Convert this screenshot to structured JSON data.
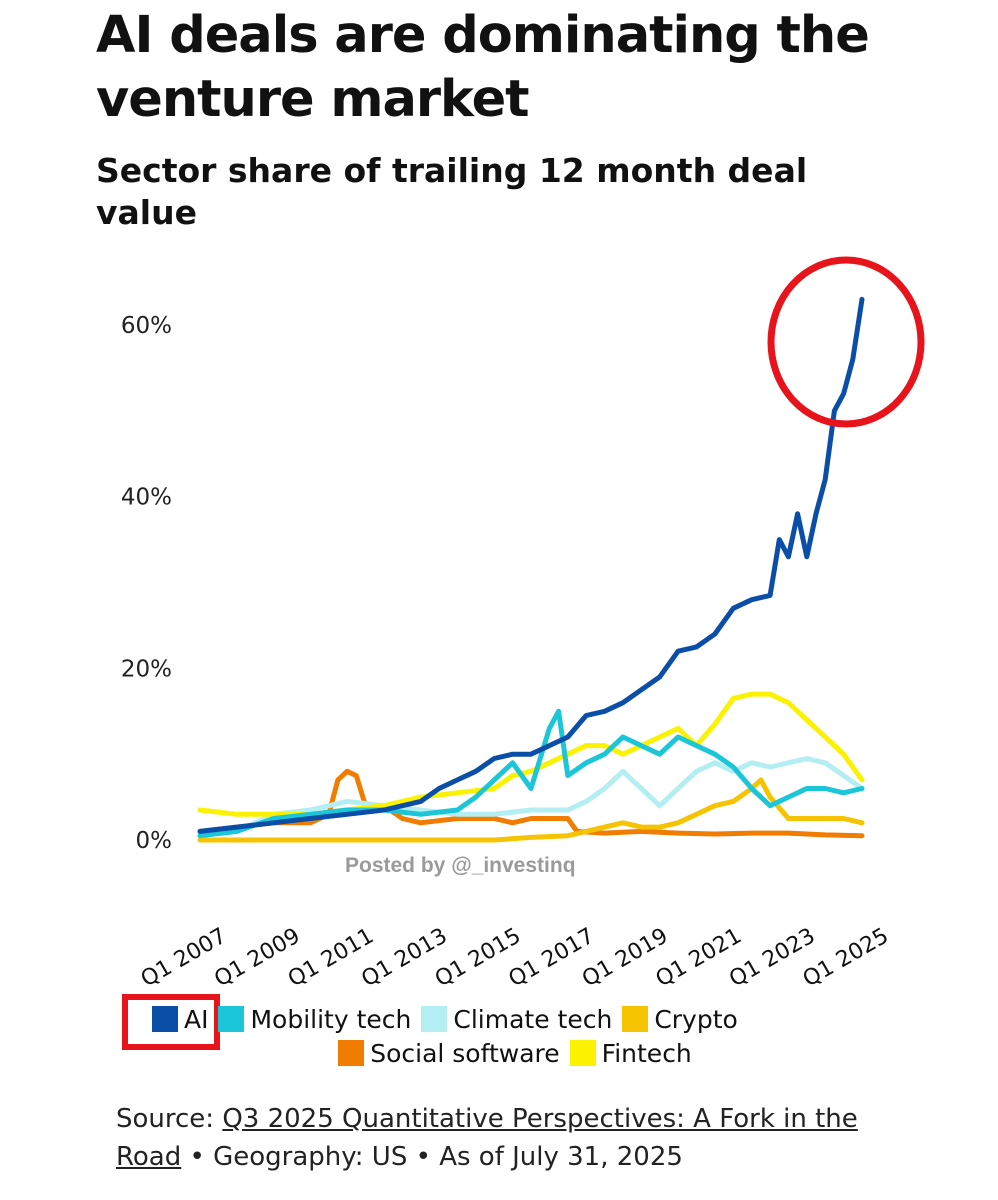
{
  "header": {
    "title": "AI deals are dominating the venture market",
    "subtitle": "Sector share of trailing 12 month deal value"
  },
  "watermark": "Posted by @_investinq",
  "source": {
    "prefix": "Source: ",
    "link_text": "Q3 2025 Quantitative Perspectives: A Fork in the Road",
    "suffix": " • Geography: US • As of July 31, 2025"
  },
  "annotations": {
    "circle_color": "#e8141b",
    "circle_target": "AI series, 2025 peak",
    "legend_box_target": "AI legend entry"
  },
  "chart_data": {
    "type": "line",
    "title": "AI deals are dominating the venture market",
    "subtitle": "Sector share of trailing 12 month deal value",
    "xlabel": "",
    "ylabel": "",
    "x_range": [
      2007,
      2025.5
    ],
    "ylim": [
      0,
      65
    ],
    "yticks": [
      0,
      20,
      40,
      60
    ],
    "ytick_labels": [
      "0%",
      "20%",
      "40%",
      "60%"
    ],
    "xticks": [
      2007,
      2009,
      2011,
      2013,
      2015,
      2017,
      2019,
      2021,
      2023,
      2025
    ],
    "xtick_labels": [
      "Q1 2007",
      "Q1 2009",
      "Q1 2011",
      "Q1 2013",
      "Q1 2015",
      "Q1 2017",
      "Q1 2019",
      "Q1 2021",
      "Q1 2023",
      "Q1 2025"
    ],
    "grid": false,
    "legend_position": "bottom",
    "series": [
      {
        "name": "AI",
        "color": "#0b4ea8",
        "points": [
          [
            2007,
            1
          ],
          [
            2008,
            1.5
          ],
          [
            2009,
            2
          ],
          [
            2010,
            2.5
          ],
          [
            2011,
            3
          ],
          [
            2012,
            3.5
          ],
          [
            2013,
            4.5
          ],
          [
            2013.5,
            6
          ],
          [
            2014,
            7
          ],
          [
            2014.5,
            8
          ],
          [
            2015,
            9.5
          ],
          [
            2015.5,
            10
          ],
          [
            2016,
            10
          ],
          [
            2016.5,
            11
          ],
          [
            2017,
            12
          ],
          [
            2017.5,
            14.5
          ],
          [
            2018,
            15
          ],
          [
            2018.5,
            16
          ],
          [
            2019,
            17.5
          ],
          [
            2019.5,
            19
          ],
          [
            2020,
            22
          ],
          [
            2020.5,
            22.5
          ],
          [
            2021,
            24
          ],
          [
            2021.5,
            27
          ],
          [
            2022,
            28
          ],
          [
            2022.5,
            28.5
          ],
          [
            2022.75,
            35
          ],
          [
            2023,
            33
          ],
          [
            2023.25,
            38
          ],
          [
            2023.5,
            33
          ],
          [
            2023.75,
            38
          ],
          [
            2024,
            42
          ],
          [
            2024.25,
            50
          ],
          [
            2024.5,
            52
          ],
          [
            2024.75,
            56
          ],
          [
            2025,
            63
          ]
        ]
      },
      {
        "name": "Mobility tech",
        "color": "#1bc6d8",
        "points": [
          [
            2007,
            0.5
          ],
          [
            2008,
            1
          ],
          [
            2009,
            2.5
          ],
          [
            2010,
            3
          ],
          [
            2011,
            3.5
          ],
          [
            2012,
            3.5
          ],
          [
            2013,
            3
          ],
          [
            2014,
            3.5
          ],
          [
            2014.5,
            5
          ],
          [
            2015,
            7
          ],
          [
            2015.5,
            9
          ],
          [
            2016,
            6
          ],
          [
            2016.5,
            13
          ],
          [
            2016.75,
            15
          ],
          [
            2017,
            7.5
          ],
          [
            2017.5,
            9
          ],
          [
            2018,
            10
          ],
          [
            2018.5,
            12
          ],
          [
            2019,
            11
          ],
          [
            2019.5,
            10
          ],
          [
            2020,
            12
          ],
          [
            2020.5,
            11
          ],
          [
            2021,
            10
          ],
          [
            2021.5,
            8.5
          ],
          [
            2022,
            6
          ],
          [
            2022.5,
            4
          ],
          [
            2023,
            5
          ],
          [
            2023.5,
            6
          ],
          [
            2024,
            6
          ],
          [
            2024.5,
            5.5
          ],
          [
            2025,
            6
          ]
        ]
      },
      {
        "name": "Climate tech",
        "color": "#b3eef2",
        "points": [
          [
            2007,
            0.5
          ],
          [
            2008,
            1
          ],
          [
            2009,
            3
          ],
          [
            2010,
            3.5
          ],
          [
            2011,
            4.5
          ],
          [
            2012,
            4
          ],
          [
            2013,
            3.5
          ],
          [
            2014,
            3
          ],
          [
            2015,
            3
          ],
          [
            2016,
            3.5
          ],
          [
            2017,
            3.5
          ],
          [
            2017.5,
            4.5
          ],
          [
            2018,
            6
          ],
          [
            2018.5,
            8
          ],
          [
            2019,
            6
          ],
          [
            2019.5,
            4
          ],
          [
            2020,
            6
          ],
          [
            2020.5,
            8
          ],
          [
            2021,
            9
          ],
          [
            2021.5,
            8
          ],
          [
            2022,
            9
          ],
          [
            2022.5,
            8.5
          ],
          [
            2023,
            9
          ],
          [
            2023.5,
            9.5
          ],
          [
            2024,
            9
          ],
          [
            2024.5,
            7.5
          ],
          [
            2025,
            6
          ]
        ]
      },
      {
        "name": "Crypto",
        "color": "#f5c300",
        "points": [
          [
            2007,
            0
          ],
          [
            2009,
            0
          ],
          [
            2011,
            0
          ],
          [
            2013,
            0
          ],
          [
            2015,
            0
          ],
          [
            2016,
            0.3
          ],
          [
            2017,
            0.5
          ],
          [
            2017.5,
            1
          ],
          [
            2018,
            1.5
          ],
          [
            2018.5,
            2
          ],
          [
            2019,
            1.5
          ],
          [
            2019.5,
            1.5
          ],
          [
            2020,
            2
          ],
          [
            2020.5,
            3
          ],
          [
            2021,
            4
          ],
          [
            2021.5,
            4.5
          ],
          [
            2022,
            6
          ],
          [
            2022.25,
            7
          ],
          [
            2022.5,
            5
          ],
          [
            2023,
            2.5
          ],
          [
            2023.5,
            2.5
          ],
          [
            2024,
            2.5
          ],
          [
            2024.5,
            2.5
          ],
          [
            2025,
            2
          ]
        ]
      },
      {
        "name": "Social software",
        "color": "#f07d00",
        "points": [
          [
            2007,
            1
          ],
          [
            2008,
            1.5
          ],
          [
            2009,
            2
          ],
          [
            2010,
            2
          ],
          [
            2010.5,
            3
          ],
          [
            2010.75,
            7
          ],
          [
            2011,
            8
          ],
          [
            2011.25,
            7.5
          ],
          [
            2011.5,
            4
          ],
          [
            2012,
            4
          ],
          [
            2012.5,
            2.5
          ],
          [
            2013,
            2
          ],
          [
            2014,
            2.5
          ],
          [
            2015,
            2.5
          ],
          [
            2015.5,
            2
          ],
          [
            2016,
            2.5
          ],
          [
            2016.5,
            2.5
          ],
          [
            2017,
            2.5
          ],
          [
            2017.25,
            1
          ],
          [
            2018,
            0.8
          ],
          [
            2019,
            1
          ],
          [
            2020,
            0.8
          ],
          [
            2021,
            0.7
          ],
          [
            2022,
            0.8
          ],
          [
            2023,
            0.8
          ],
          [
            2024,
            0.6
          ],
          [
            2025,
            0.5
          ]
        ]
      },
      {
        "name": "Fintech",
        "color": "#fbf200",
        "points": [
          [
            2007,
            3.5
          ],
          [
            2008,
            3
          ],
          [
            2009,
            3
          ],
          [
            2010,
            3
          ],
          [
            2011,
            3.5
          ],
          [
            2012,
            4
          ],
          [
            2013,
            5
          ],
          [
            2014,
            5.5
          ],
          [
            2015,
            6
          ],
          [
            2015.5,
            7.5
          ],
          [
            2016,
            8
          ],
          [
            2016.5,
            9
          ],
          [
            2017,
            10
          ],
          [
            2017.5,
            11
          ],
          [
            2018,
            11
          ],
          [
            2018.5,
            10
          ],
          [
            2019,
            11
          ],
          [
            2019.5,
            12
          ],
          [
            2020,
            13
          ],
          [
            2020.5,
            11
          ],
          [
            2021,
            13.5
          ],
          [
            2021.5,
            16.5
          ],
          [
            2022,
            17
          ],
          [
            2022.5,
            17
          ],
          [
            2023,
            16
          ],
          [
            2023.5,
            14
          ],
          [
            2024,
            12
          ],
          [
            2024.5,
            10
          ],
          [
            2025,
            7
          ]
        ]
      }
    ]
  }
}
